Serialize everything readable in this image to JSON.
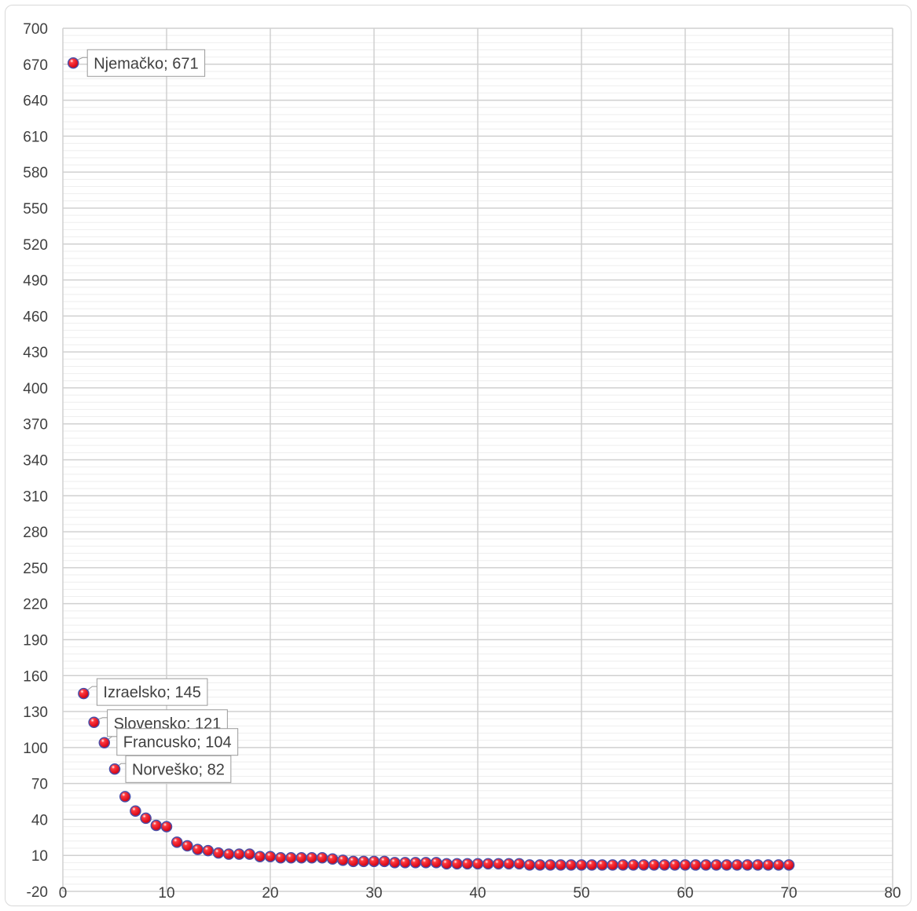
{
  "chart_data": {
    "type": "scatter",
    "title": "",
    "xlabel": "",
    "ylabel": "",
    "xlim": [
      0,
      80
    ],
    "ylim": [
      -20,
      700
    ],
    "x_ticks": [
      0,
      10,
      20,
      30,
      40,
      50,
      60,
      70,
      80
    ],
    "x_tick_labels": [
      "0",
      "10",
      "20",
      "30",
      "40",
      "50",
      "60",
      "70",
      "80"
    ],
    "y_ticks": [
      -20,
      10,
      40,
      70,
      100,
      130,
      160,
      190,
      220,
      250,
      280,
      310,
      340,
      370,
      400,
      430,
      460,
      490,
      520,
      550,
      580,
      610,
      640,
      670,
      700
    ],
    "y_tick_labels": [
      "-20",
      "10",
      "40",
      "70",
      "100",
      "130",
      "160",
      "190",
      "220",
      "250",
      "280",
      "310",
      "340",
      "370",
      "400",
      "430",
      "460",
      "490",
      "520",
      "550",
      "580",
      "610",
      "640",
      "670",
      "700"
    ],
    "grid": true,
    "legend": false,
    "marker_color": "#e8141e",
    "marker_edge_color": "#4a4fa8",
    "series": [
      {
        "x": [
          1,
          2,
          3,
          4,
          5,
          6,
          7,
          8,
          9,
          10,
          11,
          12,
          13,
          14,
          15,
          16,
          17,
          18,
          19,
          20,
          21,
          22,
          23,
          24,
          25,
          26,
          27,
          28,
          29,
          30,
          31,
          32,
          33,
          34,
          35,
          36,
          37,
          38,
          39,
          40,
          41,
          42,
          43,
          44,
          45,
          46,
          47,
          48,
          49,
          50,
          51,
          52,
          53,
          54,
          55,
          56,
          57,
          58,
          59,
          60,
          61,
          62,
          63,
          64,
          65,
          66,
          67,
          68,
          69,
          70
        ],
        "y": [
          671,
          145,
          121,
          104,
          82,
          59,
          47,
          41,
          35,
          34,
          21,
          18,
          15,
          14,
          12,
          11,
          11,
          11,
          9,
          9,
          8,
          8,
          8,
          8,
          8,
          7,
          6,
          5,
          5,
          5,
          5,
          4,
          4,
          4,
          4,
          4,
          3,
          3,
          3,
          3,
          3,
          3,
          3,
          3,
          2,
          2,
          2,
          2,
          2,
          2,
          2,
          2,
          2,
          2,
          2,
          2,
          2,
          2,
          2,
          2,
          2,
          2,
          2,
          2,
          2,
          2,
          2,
          2,
          2,
          2
        ]
      }
    ],
    "annotations": [
      {
        "index": 0,
        "text": "Njemačko; 671"
      },
      {
        "index": 1,
        "text": "Izraelsko; 145"
      },
      {
        "index": 2,
        "text": "Slovensko; 121"
      },
      {
        "index": 3,
        "text": "Francusko; 104"
      },
      {
        "index": 4,
        "text": "Norveško; 82"
      }
    ]
  }
}
